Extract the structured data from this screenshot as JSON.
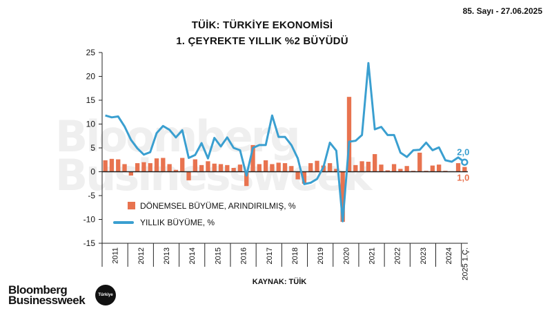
{
  "header": {
    "issue_label": "85. Sayı - 27.06.2025",
    "title_line1": "TÜİK: TÜRKİYE EKONOMİSİ",
    "title_line2": "1. ÇEYREKTE YILLIK %2 BÜYÜDÜ"
  },
  "footer": {
    "brand_line1": "Bloomberg",
    "brand_line2": "Businessweek",
    "badge": "Türkiye",
    "watermark_line1": "Bloomberg",
    "watermark_line2": "Businessweek"
  },
  "chart_data": {
    "type": "bar+line",
    "source": "KAYNAK: TÜİK",
    "ylim": [
      -15,
      25
    ],
    "yticks": [
      25,
      20,
      15,
      10,
      5,
      0,
      -5,
      -10,
      -15
    ],
    "ytick_labels": [
      "25",
      "20",
      "15",
      "10",
      "5",
      "0",
      "-5",
      "-10",
      "-15"
    ],
    "years": [
      "2011",
      "2012",
      "2013",
      "2014",
      "2015",
      "2016",
      "2017",
      "2018",
      "2019",
      "2020",
      "2021",
      "2022",
      "2023",
      "2024",
      "2025 1.Ç."
    ],
    "quarters": [
      "2011Q1",
      "2011Q2",
      "2011Q3",
      "2011Q4",
      "2012Q1",
      "2012Q2",
      "2012Q3",
      "2012Q4",
      "2013Q1",
      "2013Q2",
      "2013Q3",
      "2013Q4",
      "2014Q1",
      "2014Q2",
      "2014Q3",
      "2014Q4",
      "2015Q1",
      "2015Q2",
      "2015Q3",
      "2015Q4",
      "2016Q1",
      "2016Q2",
      "2016Q3",
      "2016Q4",
      "2017Q1",
      "2017Q2",
      "2017Q3",
      "2017Q4",
      "2018Q1",
      "2018Q2",
      "2018Q3",
      "2018Q4",
      "2019Q1",
      "2019Q2",
      "2019Q3",
      "2019Q4",
      "2020Q1",
      "2020Q2",
      "2020Q3",
      "2020Q4",
      "2021Q1",
      "2021Q2",
      "2021Q3",
      "2021Q4",
      "2022Q1",
      "2022Q2",
      "2022Q3",
      "2022Q4",
      "2023Q1",
      "2023Q2",
      "2023Q3",
      "2023Q4",
      "2024Q1",
      "2024Q2",
      "2024Q3",
      "2024Q4",
      "2025Q1"
    ],
    "series": [
      {
        "name": "DÖNEMSEL BÜYÜME, ARINDIRILMIŞ, %",
        "kind": "bar",
        "color": "#e8734f",
        "values": [
          2.4,
          2.7,
          2.6,
          1.6,
          -0.8,
          1.8,
          2.0,
          1.8,
          2.8,
          2.9,
          1.6,
          0.4,
          2.9,
          -1.8,
          2.6,
          1.4,
          2.2,
          1.7,
          1.6,
          1.4,
          0.8,
          1.5,
          -3.0,
          5.6,
          1.6,
          2.4,
          1.6,
          1.9,
          1.8,
          1.2,
          -1.6,
          -2.5,
          1.8,
          2.3,
          1.3,
          1.8,
          0.6,
          -10.5,
          15.7,
          1.4,
          2.2,
          2.1,
          3.7,
          1.5,
          0.3,
          1.6,
          0.6,
          1.2,
          0.2,
          4.0,
          0.2,
          1.3,
          1.5,
          0.2,
          0.1,
          1.8,
          1.0
        ]
      },
      {
        "name": "YILLIK BÜYÜME, %",
        "kind": "line",
        "color": "#3a9fd0",
        "values": [
          11.8,
          11.4,
          11.6,
          9.5,
          6.7,
          4.9,
          3.6,
          4.1,
          8.1,
          9.6,
          8.8,
          7.2,
          8.7,
          2.9,
          3.5,
          6.0,
          2.8,
          7.1,
          5.3,
          7.2,
          5.0,
          4.5,
          -0.8,
          5.0,
          5.6,
          5.6,
          11.8,
          7.3,
          7.3,
          5.6,
          2.8,
          -2.6,
          -2.3,
          -1.5,
          1.0,
          6.1,
          4.4,
          -10.4,
          6.3,
          6.5,
          7.7,
          22.8,
          8.9,
          9.4,
          7.7,
          7.7,
          4.0,
          3.1,
          4.5,
          4.6,
          6.1,
          4.5,
          5.1,
          2.4,
          2.1,
          3.0,
          2.0
        ]
      }
    ],
    "last_labels": {
      "line": "2,0",
      "bar": "1,0"
    },
    "legend_position": "bottom-left"
  }
}
